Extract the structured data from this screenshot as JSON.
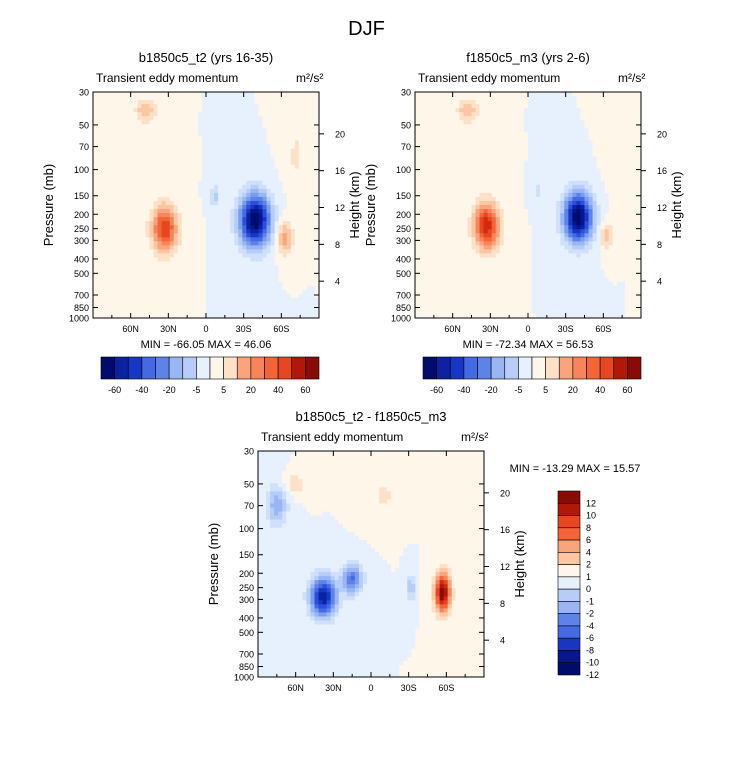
{
  "page_title": "DJF",
  "colors": {
    "pos": [
      "#fff6ea",
      "#fde1c6",
      "#fcc6a3",
      "#fba47c",
      "#f88559",
      "#f36537",
      "#e74620",
      "#d22a0f",
      "#b11808",
      "#8a0a04"
    ],
    "neg": [
      "#e7f0fd",
      "#cfe0fb",
      "#b5cdf7",
      "#98b6f3",
      "#7a9ded",
      "#5d83e8",
      "#4369e3",
      "#2b4ede",
      "#1836c6",
      "#0b22a3",
      "#061690",
      "#000c6b"
    ]
  },
  "chart_data": [
    {
      "type": "heatmap",
      "title": "b1850c5_t2 (yrs 16-35)",
      "left_label": "Transient eddy momentum",
      "right_label": "m²/s²",
      "xlabel": "",
      "ylabel": "Pressure (mb)",
      "y2label": "Height (km)",
      "x_range": [
        90,
        -90
      ],
      "x_ticks": [
        {
          "v": 60,
          "label": "60N"
        },
        {
          "v": 30,
          "label": "30N"
        },
        {
          "v": 0,
          "label": "0"
        },
        {
          "v": -30,
          "label": "30S"
        },
        {
          "v": -60,
          "label": "60S"
        }
      ],
      "y_range": [
        1000,
        30
      ],
      "y_ticks": [
        30,
        50,
        70,
        100,
        150,
        200,
        250,
        300,
        400,
        500,
        700,
        850,
        1000
      ],
      "y2_ticks": [
        4,
        8,
        12,
        16,
        20
      ],
      "stats": "MIN = -66.05  MAX =  46.06",
      "colorbar_labels": [
        "-60",
        "-40",
        "-20",
        "-5",
        "5",
        "20",
        "40",
        "60"
      ],
      "features": [
        {
          "lat": 33,
          "p": 250,
          "amp": 46,
          "slat": 10,
          "sz": 0.36
        },
        {
          "lat": 48,
          "p": 40,
          "amp": 20,
          "slat": 8,
          "sz": 0.18
        },
        {
          "lat": 62,
          "p": 650,
          "amp": 6,
          "slat": 14,
          "sz": 0.45
        },
        {
          "lat": -39,
          "p": 220,
          "amp": -66,
          "slat": 12,
          "sz": 0.4
        },
        {
          "lat": -63,
          "p": 290,
          "amp": 25,
          "slat": 6,
          "sz": 0.25
        },
        {
          "lat": -72,
          "p": 80,
          "amp": 8,
          "slat": 8,
          "sz": 0.5
        },
        {
          "lat": -7,
          "p": 150,
          "amp": -14,
          "slat": 4,
          "sz": 0.15
        }
      ]
    },
    {
      "type": "heatmap",
      "title": "f1850c5_m3 (yrs 2-6)",
      "left_label": "Transient eddy momentum",
      "right_label": "m²/s²",
      "xlabel": "",
      "ylabel": "Pressure (mb)",
      "y2label": "Height (km)",
      "x_range": [
        90,
        -90
      ],
      "x_ticks": [
        {
          "v": 60,
          "label": "60N"
        },
        {
          "v": 30,
          "label": "30N"
        },
        {
          "v": 0,
          "label": "0"
        },
        {
          "v": -30,
          "label": "30S"
        },
        {
          "v": -60,
          "label": "60S"
        }
      ],
      "y_range": [
        1000,
        30
      ],
      "y_ticks": [
        30,
        50,
        70,
        100,
        150,
        200,
        250,
        300,
        400,
        500,
        700,
        850,
        1000
      ],
      "y2_ticks": [
        4,
        8,
        12,
        16,
        20
      ],
      "stats": "MIN = -72.34  MAX =  56.53",
      "colorbar_labels": [
        "-60",
        "-40",
        "-20",
        "-5",
        "5",
        "20",
        "40",
        "60"
      ],
      "features": [
        {
          "lat": 33,
          "p": 240,
          "amp": 56,
          "slat": 10,
          "sz": 0.36
        },
        {
          "lat": 48,
          "p": 40,
          "amp": 22,
          "slat": 8,
          "sz": 0.18
        },
        {
          "lat": 62,
          "p": 650,
          "amp": 6,
          "slat": 14,
          "sz": 0.45
        },
        {
          "lat": -40,
          "p": 210,
          "amp": -72,
          "slat": 11,
          "sz": 0.38
        },
        {
          "lat": -63,
          "p": 280,
          "amp": 18,
          "slat": 5,
          "sz": 0.22
        },
        {
          "lat": -72,
          "p": 80,
          "amp": 7,
          "slat": 8,
          "sz": 0.5
        },
        {
          "lat": -8,
          "p": 140,
          "amp": -10,
          "slat": 4,
          "sz": 0.15
        }
      ]
    },
    {
      "type": "heatmap",
      "title": "b1850c5_t2 - f1850c5_m3",
      "left_label": "Transient eddy momentum",
      "right_label": "m²/s²",
      "xlabel": "",
      "ylabel": "Pressure (mb)",
      "y2label": "Height (km)",
      "x_range": [
        90,
        -90
      ],
      "x_ticks": [
        {
          "v": 60,
          "label": "60N"
        },
        {
          "v": 30,
          "label": "30N"
        },
        {
          "v": 0,
          "label": "0"
        },
        {
          "v": -30,
          "label": "30S"
        },
        {
          "v": -60,
          "label": "60S"
        }
      ],
      "y_range": [
        1000,
        30
      ],
      "y_ticks": [
        30,
        50,
        70,
        100,
        150,
        200,
        250,
        300,
        400,
        500,
        700,
        850,
        1000
      ],
      "y2_ticks": [
        4,
        8,
        12,
        16,
        20
      ],
      "stats": "MIN = -13.29  MAX =  15.57",
      "colorbar_labels": [
        "12",
        "10",
        "8",
        "6",
        "4",
        "2",
        "1",
        "0",
        "-1",
        "-2",
        "-4",
        "-6",
        "-8",
        "-10",
        "-12"
      ],
      "features": [
        {
          "lat": 38,
          "p": 290,
          "amp": -13,
          "slat": 10,
          "sz": 0.3
        },
        {
          "lat": 15,
          "p": 220,
          "amp": -8,
          "slat": 8,
          "sz": 0.22
        },
        {
          "lat": 75,
          "p": 70,
          "amp": -5,
          "slat": 8,
          "sz": 0.3
        },
        {
          "lat": -57,
          "p": 270,
          "amp": 15.5,
          "slat": 6,
          "sz": 0.3
        },
        {
          "lat": -32,
          "p": 250,
          "amp": -4,
          "slat": 3,
          "sz": 0.2
        },
        {
          "lat": 60,
          "p": 50,
          "amp": 3,
          "slat": 8,
          "sz": 0.15
        },
        {
          "lat": -10,
          "p": 60,
          "amp": 2,
          "slat": 10,
          "sz": 0.3
        }
      ]
    }
  ]
}
